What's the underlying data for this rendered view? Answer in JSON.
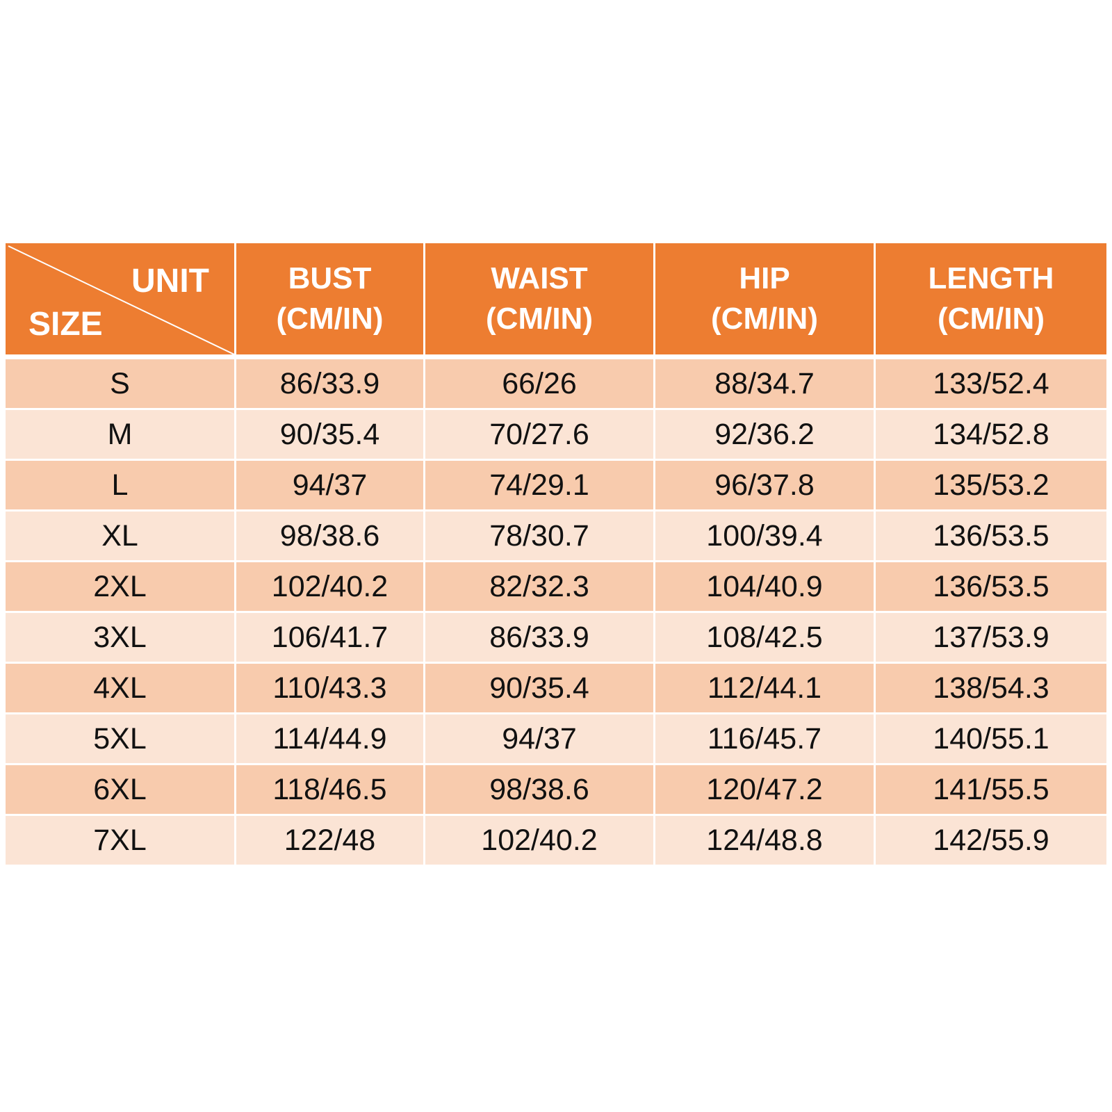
{
  "table": {
    "corner": {
      "top": "UNIT",
      "bottom": "SIZE"
    },
    "columns": [
      {
        "name": "BUST",
        "unit": "(CM/IN)"
      },
      {
        "name": "WAIST",
        "unit": "(CM/IN)"
      },
      {
        "name": "HIP",
        "unit": "(CM/IN)"
      },
      {
        "name": "LENGTH",
        "unit": "(CM/IN)"
      }
    ],
    "rows": [
      [
        "S",
        "86/33.9",
        "66/26",
        "88/34.7",
        "133/52.4"
      ],
      [
        "M",
        "90/35.4",
        "70/27.6",
        "92/36.2",
        "134/52.8"
      ],
      [
        "L",
        "94/37",
        "74/29.1",
        "96/37.8",
        "135/53.2"
      ],
      [
        "XL",
        "98/38.6",
        "78/30.7",
        "100/39.4",
        "136/53.5"
      ],
      [
        "2XL",
        "102/40.2",
        "82/32.3",
        "104/40.9",
        "136/53.5"
      ],
      [
        "3XL",
        "106/41.7",
        "86/33.9",
        "108/42.5",
        "137/53.9"
      ],
      [
        "4XL",
        "110/43.3",
        "90/35.4",
        "112/44.1",
        "138/54.3"
      ],
      [
        "5XL",
        "114/44.9",
        "94/37",
        "116/45.7",
        "140/55.1"
      ],
      [
        "6XL",
        "118/46.5",
        "98/38.6",
        "120/47.2",
        "141/55.5"
      ],
      [
        "7XL",
        "122/48",
        "102/40.2",
        "124/48.8",
        "142/55.9"
      ]
    ]
  }
}
